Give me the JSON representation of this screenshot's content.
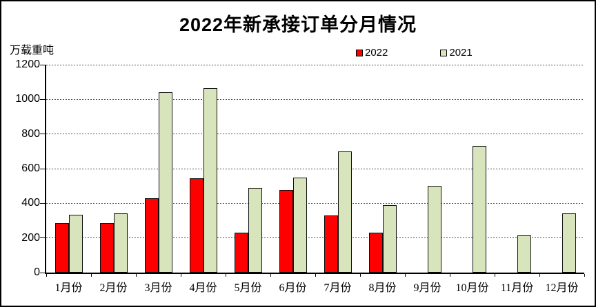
{
  "title": "2022年新承接订单分月情况",
  "y_axis_unit": "万载重吨",
  "legend": {
    "position": "top-center",
    "entries": [
      "2022",
      "2021"
    ]
  },
  "colors": {
    "series_2022": "#FF0000",
    "series_2021": "#D8E4BC",
    "bar_border": "#0D0D0D",
    "axis": "#000000",
    "gridline": "#4D4D4D",
    "background": "#FFFFFF",
    "frame_border": "#000000"
  },
  "chart_data": {
    "type": "bar",
    "title": "2022年新承接订单分月情况",
    "ylabel": "万载重吨",
    "xlabel": "",
    "categories": [
      "1月份",
      "2月份",
      "3月份",
      "4月份",
      "5月份",
      "6月份",
      "7月份",
      "8月份",
      "9月份",
      "10月份",
      "11月份",
      "12月份"
    ],
    "series": [
      {
        "name": "2022",
        "color": "#FF0000",
        "values": [
          285,
          285,
          430,
          545,
          230,
          475,
          330,
          230,
          null,
          null,
          null,
          null
        ]
      },
      {
        "name": "2021",
        "color": "#D8E4BC",
        "values": [
          335,
          340,
          1040,
          1065,
          490,
          550,
          700,
          390,
          500,
          730,
          215,
          340
        ]
      }
    ],
    "ylim": [
      0,
      1200
    ],
    "yticks": [
      0,
      200,
      400,
      600,
      800,
      1000,
      1200
    ],
    "grid": "horizontal-dashed",
    "legend_position": "top-center"
  }
}
